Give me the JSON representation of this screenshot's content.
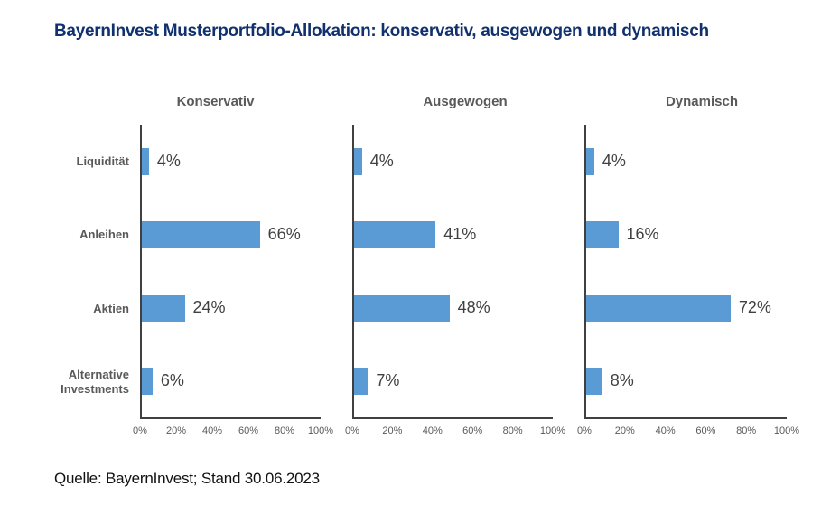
{
  "title": "BayernInvest Musterportfolio-Allokation: konservativ, ausgewogen und dynamisch",
  "source": "Quelle: BayernInvest; Stand 30.06.2023",
  "colors": {
    "title_navy": "#10306e",
    "bar_blue": "#5b9bd5",
    "axis_gray": "#404040",
    "tick_gray": "#595959",
    "value_gray": "#404040"
  },
  "chart_data": {
    "type": "bar",
    "orientation": "horizontal",
    "title": "BayernInvest Musterportfolio-Allokation: konservativ, ausgewogen und dynamisch",
    "categories": [
      "Liquidität",
      "Anleihen",
      "Aktien",
      "Alternative Investments"
    ],
    "series": [
      {
        "name": "Konservativ",
        "values": [
          4,
          66,
          24,
          6
        ]
      },
      {
        "name": "Ausgewogen",
        "values": [
          4,
          41,
          48,
          7
        ]
      },
      {
        "name": "Dynamisch",
        "values": [
          4,
          16,
          72,
          8
        ]
      }
    ],
    "value_suffix": "%",
    "x_ticks": [
      "0%",
      "20%",
      "40%",
      "60%",
      "80%",
      "100%"
    ],
    "xlim": [
      0,
      100
    ],
    "grid": false,
    "legend": "none",
    "annotation": "Quelle: BayernInvest; Stand 30.06.2023"
  }
}
